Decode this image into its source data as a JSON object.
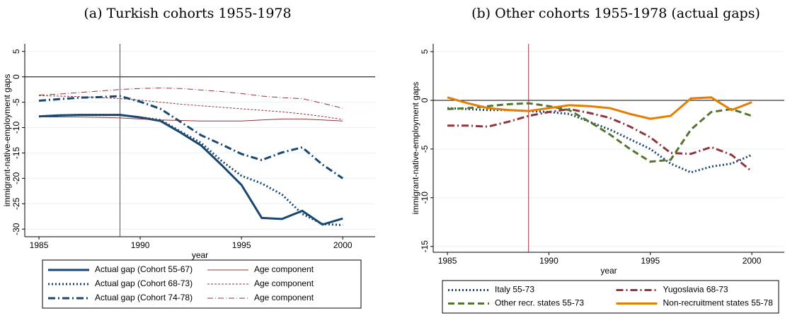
{
  "chart_data": [
    {
      "type": "line",
      "title": "(a) Turkish cohorts 1955-1978",
      "xlabel": "year",
      "ylabel": "immigrant-native-employment gaps",
      "x": [
        1985,
        1986,
        1987,
        1988,
        1989,
        1990,
        1991,
        1992,
        1993,
        1994,
        1995,
        1996,
        1997,
        1998,
        1999,
        2000
      ],
      "xlim": [
        1984.3,
        2001.6
      ],
      "xticks": [
        1985,
        1990,
        1995,
        2000
      ],
      "ylim": [
        -31.5,
        6.5
      ],
      "yticks": [
        5,
        0,
        -5,
        -10,
        -15,
        -20,
        -25,
        -30
      ],
      "grid": true,
      "vline": 1989,
      "vline_color": "#90353b",
      "hline": 0,
      "series": [
        {
          "name": "Actual gap (Cohort 55-67)",
          "color": "#1a476f",
          "dash": "solid",
          "weight": "thick",
          "values": [
            -7.8,
            -7.6,
            -7.5,
            -7.5,
            -7.5,
            -8.0,
            -8.7,
            -11.0,
            -13.5,
            -17.3,
            -21.3,
            -27.8,
            -28.0,
            -26.4,
            -29.1,
            -27.9
          ]
        },
        {
          "name": "Age component",
          "color": "#90353b",
          "dash": "solid",
          "weight": "thin",
          "values": [
            -7.9,
            -7.9,
            -7.9,
            -8.0,
            -8.1,
            -8.3,
            -8.5,
            -8.6,
            -8.7,
            -8.7,
            -8.7,
            -8.5,
            -8.3,
            -8.3,
            -8.5,
            -8.7
          ]
        },
        {
          "name": "Actual gap (Cohort 68-73)",
          "color": "#1a476f",
          "dash": "dot",
          "weight": "thick",
          "values": [
            -7.8,
            -7.6,
            -7.5,
            -7.5,
            -7.5,
            -8.0,
            -8.5,
            -10.8,
            -13.0,
            -16.5,
            -19.5,
            -21.0,
            -23.2,
            -27.0,
            -29.0,
            -29.2
          ]
        },
        {
          "name": "Age component",
          "color": "#90353b",
          "dash": "dash",
          "weight": "thin",
          "values": [
            -3.7,
            -3.8,
            -3.9,
            -4.1,
            -4.3,
            -4.6,
            -5.0,
            -5.4,
            -5.7,
            -6.0,
            -6.3,
            -6.6,
            -6.9,
            -7.3,
            -7.8,
            -8.4
          ]
        },
        {
          "name": "Actual gap (Cohort 74-78)",
          "color": "#1a476f",
          "dash": "dashdot",
          "weight": "thick",
          "values": [
            -4.7,
            -4.4,
            -4.1,
            -4.0,
            -3.8,
            -4.9,
            -6.3,
            -8.9,
            -11.5,
            -13.3,
            -15.2,
            -16.4,
            -14.9,
            -13.9,
            -17.3,
            -20.0
          ]
        },
        {
          "name": "Age component",
          "color": "#90353b",
          "dash": "dashdot",
          "weight": "thin",
          "values": [
            -3.6,
            -3.4,
            -3.1,
            -2.8,
            -2.5,
            -2.3,
            -2.2,
            -2.3,
            -2.6,
            -2.9,
            -3.3,
            -3.8,
            -4.1,
            -4.3,
            -5.2,
            -6.2
          ]
        }
      ]
    },
    {
      "type": "line",
      "title": "(b) Other cohorts 1955-1978 (actual gaps)",
      "xlabel": "year",
      "ylabel": "immigrant-native-employment gaps",
      "x": [
        1985,
        1986,
        1987,
        1988,
        1989,
        1990,
        1991,
        1992,
        1993,
        1994,
        1995,
        1996,
        1997,
        1998,
        1999,
        2000
      ],
      "xlim": [
        1984.3,
        2001.6
      ],
      "xticks": [
        1985,
        1990,
        1995,
        2000
      ],
      "ylim": [
        -15.6,
        5.8
      ],
      "yticks": [
        5,
        0,
        -5,
        -10,
        -15
      ],
      "grid": true,
      "vline": 1989,
      "vline_color": "#90353b",
      "hline": 0,
      "series": [
        {
          "name": "Italy 55-73",
          "color": "#1a476f",
          "dash": "dot",
          "weight": "thick",
          "values": [
            -0.8,
            -0.9,
            -1.0,
            -1.0,
            -1.1,
            -1.2,
            -1.4,
            -2.2,
            -3.0,
            -4.0,
            -5.0,
            -6.5,
            -7.4,
            -6.8,
            -6.5,
            -5.6
          ]
        },
        {
          "name": "Yugoslavia 68-73",
          "color": "#90353b",
          "dash": "dashdot",
          "weight": "thick",
          "values": [
            -2.6,
            -2.6,
            -2.7,
            -2.2,
            -1.6,
            -1.2,
            -0.9,
            -1.3,
            -1.8,
            -2.7,
            -3.8,
            -5.4,
            -5.5,
            -4.8,
            -5.6,
            -7.3
          ]
        },
        {
          "name": "Other recr. states 55-73",
          "color": "#55752f",
          "dash": "dash",
          "weight": "thick",
          "values": [
            -0.9,
            -0.8,
            -0.6,
            -0.4,
            -0.3,
            -0.6,
            -1.0,
            -2.2,
            -3.5,
            -5.0,
            -6.3,
            -6.1,
            -3.0,
            -1.2,
            -0.9,
            -1.6
          ]
        },
        {
          "name": "Non-recruitment states 55-78",
          "color": "#e37e00",
          "dash": "solid",
          "weight": "thick",
          "values": [
            0.3,
            -0.3,
            -0.8,
            -1.0,
            -1.1,
            -0.8,
            -0.5,
            -0.6,
            -0.8,
            -1.4,
            -1.9,
            -1.6,
            0.2,
            0.3,
            -1.0,
            -0.2
          ]
        }
      ]
    }
  ]
}
